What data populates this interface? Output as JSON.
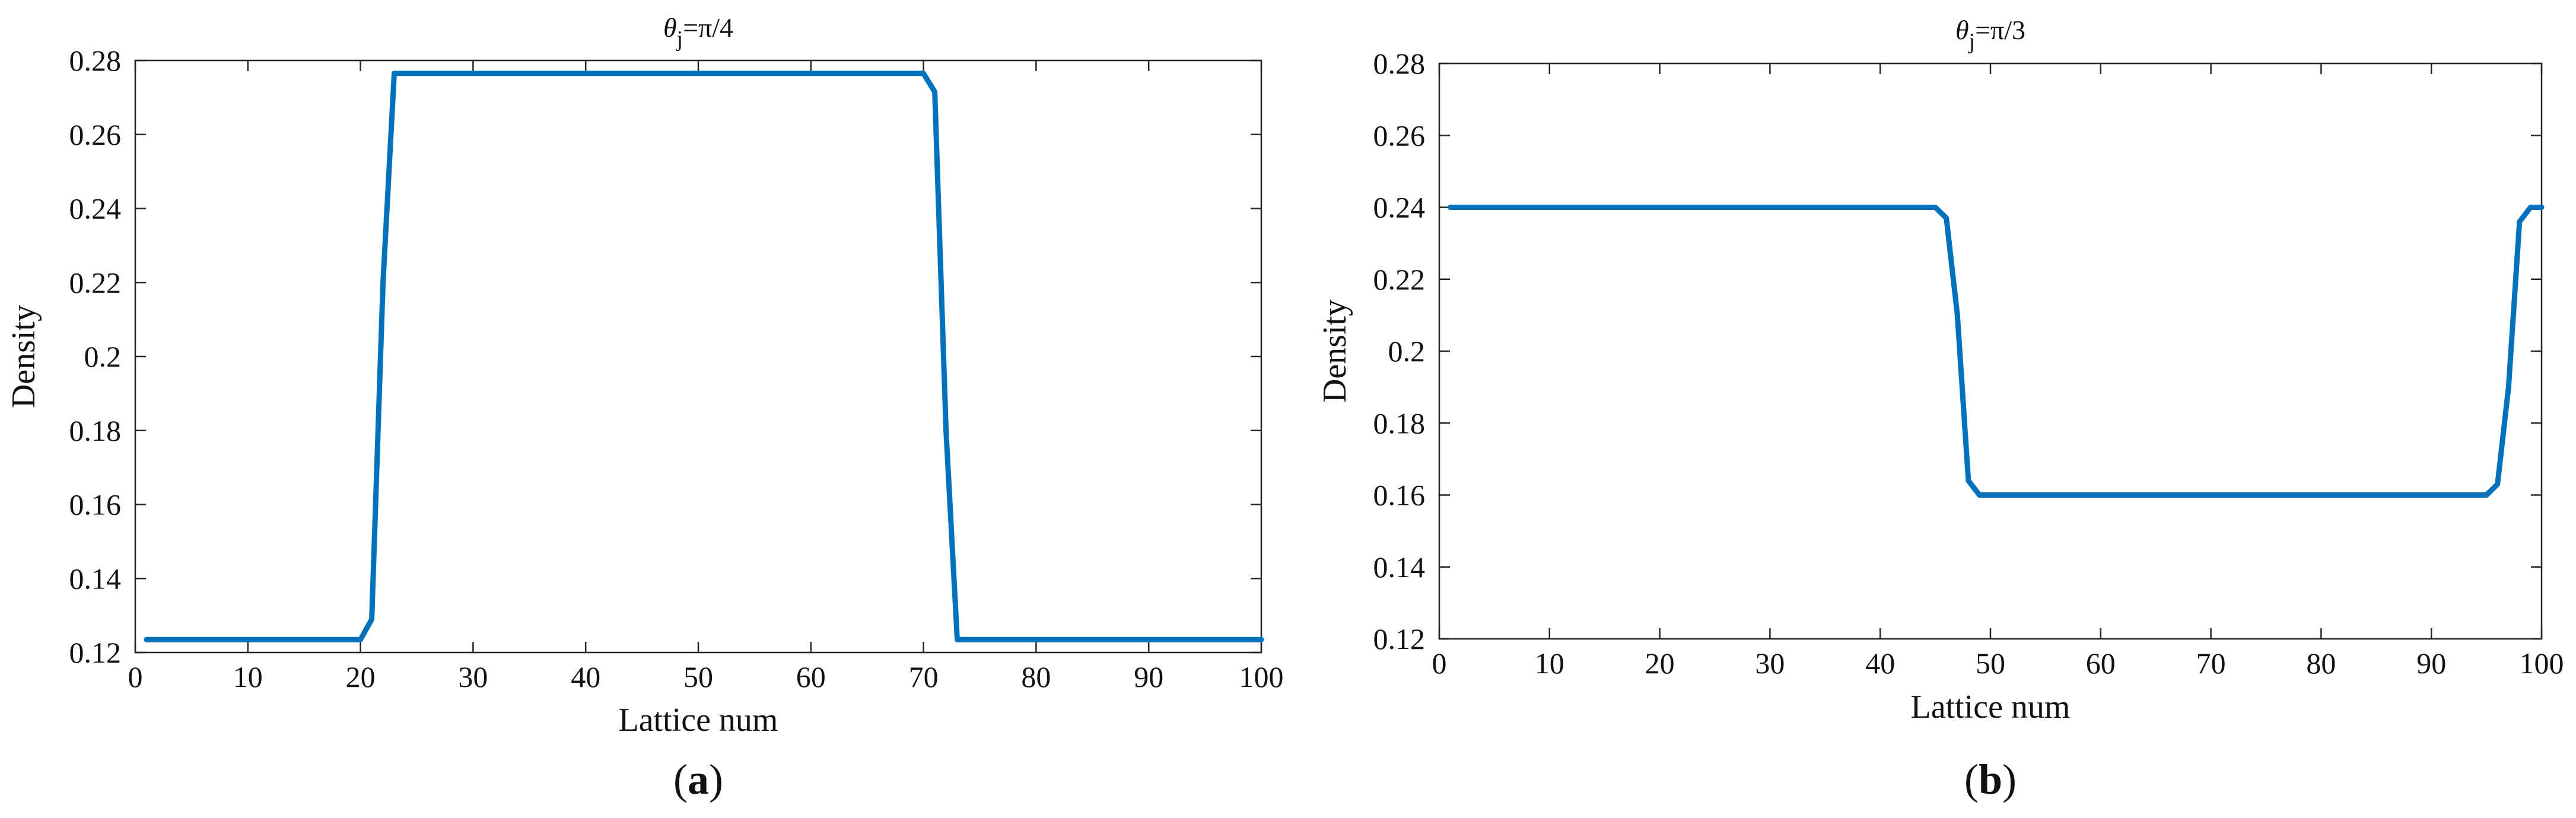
{
  "chart_data": [
    {
      "type": "line",
      "panel_label": {
        "open": "(",
        "letter": "a",
        "close": ")"
      },
      "title": {
        "theta": "θ",
        "sub": "j",
        "rest": "=π/4"
      },
      "xlabel": "Lattice num",
      "ylabel": "Density",
      "xlim": [
        0,
        100
      ],
      "ylim": [
        0.12,
        0.28
      ],
      "xticks": [
        0,
        10,
        20,
        30,
        40,
        50,
        60,
        70,
        80,
        90,
        100
      ],
      "xtick_labels": [
        "0",
        "10",
        "20",
        "30",
        "40",
        "50",
        "60",
        "70",
        "80",
        "90",
        "100"
      ],
      "yticks": [
        0.12,
        0.14,
        0.16,
        0.18,
        0.2,
        0.22,
        0.24,
        0.26,
        0.28
      ],
      "ytick_labels": [
        "0.12",
        "0.14",
        "0.16",
        "0.18",
        "0.2",
        "0.22",
        "0.24",
        "0.26",
        "0.28"
      ],
      "grid": false,
      "line_color": "#0072BD",
      "series": [
        {
          "x": [
            1,
            20,
            21,
            22,
            23,
            70,
            71,
            72,
            73,
            100
          ],
          "y": [
            0.1235,
            0.1235,
            0.129,
            0.22,
            0.2765,
            0.2765,
            0.2715,
            0.18,
            0.1235,
            0.1235
          ]
        }
      ]
    },
    {
      "type": "line",
      "panel_label": {
        "open": "(",
        "letter": "b",
        "close": ")"
      },
      "title": {
        "theta": "θ",
        "sub": "j",
        "rest": "=π/3"
      },
      "xlabel": "Lattice num",
      "ylabel": "Density",
      "xlim": [
        0,
        100
      ],
      "ylim": [
        0.12,
        0.28
      ],
      "xticks": [
        0,
        10,
        20,
        30,
        40,
        50,
        60,
        70,
        80,
        90,
        100
      ],
      "xtick_labels": [
        "0",
        "10",
        "20",
        "30",
        "40",
        "50",
        "60",
        "70",
        "80",
        "90",
        "100"
      ],
      "yticks": [
        0.12,
        0.14,
        0.16,
        0.18,
        0.2,
        0.22,
        0.24,
        0.26,
        0.28
      ],
      "ytick_labels": [
        "0.12",
        "0.14",
        "0.16",
        "0.18",
        "0.2",
        "0.22",
        "0.24",
        "0.26",
        "0.28"
      ],
      "grid": false,
      "line_color": "#0072BD",
      "series": [
        {
          "x": [
            1,
            45,
            46,
            47,
            48,
            49,
            95,
            96,
            97,
            98,
            99,
            100
          ],
          "y": [
            0.24,
            0.24,
            0.237,
            0.21,
            0.164,
            0.16,
            0.16,
            0.163,
            0.19,
            0.236,
            0.24,
            0.24
          ]
        }
      ]
    }
  ]
}
